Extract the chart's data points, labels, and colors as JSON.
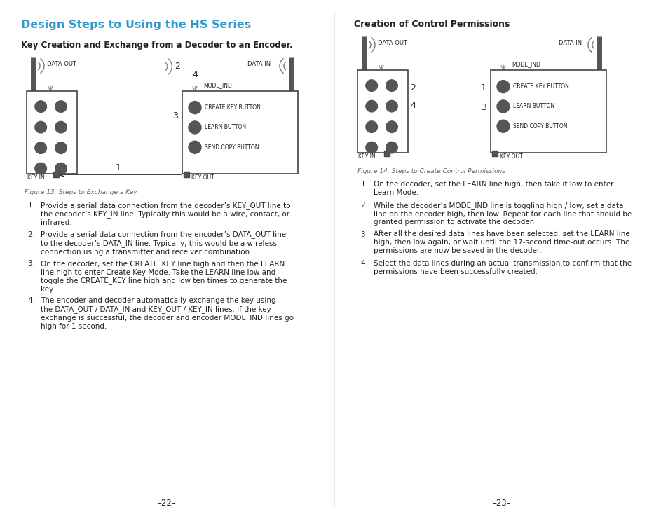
{
  "bg_color": "#ffffff",
  "title_color": "#3399CC",
  "title_text": "Design Steps to Using the HS Series",
  "left_section_heading": "Key Creation and Exchange from a Decoder to an Encoder.",
  "right_section_heading": "Creation of Control Permissions",
  "figure13_caption": "Figure 13: Steps to Exchange a Key",
  "figure14_caption": "Figure 14: Steps to Create Control Permissions",
  "left_list": [
    "Provide a serial data connection from the decoder’s KEY_OUT line to\nthe encoder’s KEY_IN line. Typically this would be a wire, contact, or\ninfrared.",
    "Provide a serial data connection from the encoder’s DATA_OUT line\nto the decoder’s DATA_IN line. Typically, this would be a wireless\nconnection using a transmitter and receiver combination.",
    "On the decoder, set the CREATE_KEY line high and then the LEARN\nline high to enter Create Key Mode. Take the LEARN line low and\ntoggle the CREATE_KEY line high and low ten times to generate the\nkey.",
    "The encoder and decoder automatically exchange the key using\nthe DATA_OUT / DATA_IN and KEY_OUT / KEY_IN lines. If the key\nexchange is successful, the decoder and encoder MODE_IND lines go\nhigh for 1 second."
  ],
  "right_list": [
    "On the decoder, set the LEARN line high, then take it low to enter\nLearn Mode.",
    "While the decoder’s MODE_IND line is toggling high / low, set a data\nline on the encoder high, then low. Repeat for each line that should be\ngranted permission to activate the decoder.",
    "After all the desired data lines have been selected, set the LEARN line\nhigh, then low again, or wait until the 17-second time-out occurs. The\npermissions are now be saved in the decoder.",
    "Select the data lines during an actual transmission to confirm that the\npermissions have been successfully created."
  ],
  "page_left": "–22–",
  "page_right": "–23–",
  "btn_labels": [
    "CREATE KEY BUTTON",
    "LEARN BUTTON",
    "SEND COPY BUTTON"
  ],
  "dark_gray": "#555555",
  "med_gray": "#888888",
  "text_dark": "#222222",
  "text_gray": "#666666",
  "line_color": "#999999",
  "device_edge": "#444444"
}
